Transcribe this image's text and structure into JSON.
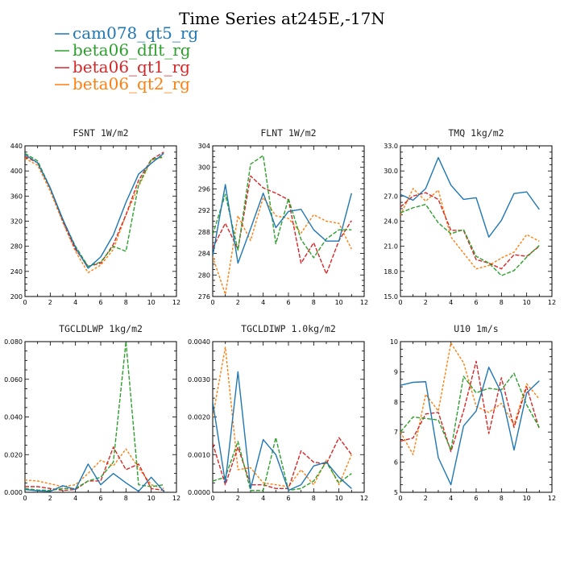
{
  "figure": {
    "title": "Time Series at245E,-17N",
    "legend": [
      {
        "name": "cam078_qt5_rg",
        "color": "#1f77b4",
        "dash": ""
      },
      {
        "name": "beta06_dflt_rg",
        "color": "#2ca02c",
        "dash": "5,2"
      },
      {
        "name": "beta06_qt1_rg",
        "color": "#d62728",
        "dash": "5,2"
      },
      {
        "name": "beta06_qt2_rg",
        "color": "#ff7f0e",
        "dash": "3,2"
      }
    ]
  },
  "chart_data": [
    {
      "type": "line",
      "title": "FSNT  1W/m2",
      "x": [
        0,
        1,
        2,
        3,
        4,
        5,
        6,
        7,
        8,
        9,
        10,
        11
      ],
      "xlim": [
        0,
        12
      ],
      "xticks": [
        "0",
        "2",
        "4",
        "6",
        "8",
        "10",
        "12"
      ],
      "ylim": [
        200,
        440
      ],
      "yticks": [
        "200",
        "240",
        "280",
        "320",
        "360",
        "400",
        "440"
      ],
      "series": [
        {
          "name": "cam078_qt5_rg",
          "values": [
            426,
            413,
            373,
            323,
            278,
            245,
            263,
            298,
            350,
            395,
            412,
            428
          ]
        },
        {
          "name": "beta06_dflt_rg",
          "values": [
            428,
            416,
            373,
            322,
            280,
            248,
            255,
            280,
            272,
            378,
            418,
            423
          ]
        },
        {
          "name": "beta06_qt1_rg",
          "values": [
            423,
            413,
            372,
            320,
            275,
            248,
            253,
            283,
            330,
            385,
            418,
            430
          ]
        },
        {
          "name": "beta06_qt2_rg",
          "values": [
            420,
            409,
            368,
            318,
            272,
            238,
            250,
            275,
            330,
            375,
            417,
            422
          ]
        }
      ]
    },
    {
      "type": "line",
      "title": "FLNT  1W/m2",
      "x": [
        0,
        1,
        2,
        3,
        4,
        5,
        6,
        7,
        8,
        9,
        10,
        11
      ],
      "xlim": [
        0,
        12
      ],
      "xticks": [
        "0",
        "2",
        "4",
        "6",
        "8",
        "10",
        "12"
      ],
      "ylim": [
        276,
        304
      ],
      "yticks": [
        "276",
        "280",
        "284",
        "288",
        "292",
        "296",
        "300",
        "304"
      ],
      "series": [
        {
          "name": "cam078_qt5_rg",
          "values": [
            283.5,
            296.8,
            282.2,
            288.6,
            295.2,
            288.8,
            291.8,
            292.2,
            288.4,
            286.3,
            286.3,
            295.2
          ]
        },
        {
          "name": "beta06_dflt_rg",
          "values": [
            287.5,
            295.0,
            284.6,
            300.6,
            302.2,
            285.8,
            294.2,
            286.6,
            283.2,
            286.7,
            288.4,
            288.4
          ]
        },
        {
          "name": "beta06_qt1_rg",
          "values": [
            285.0,
            289.6,
            284.8,
            298.4,
            296.2,
            295.2,
            294.0,
            282.2,
            286.0,
            280.2,
            286.4,
            290.1
          ]
        },
        {
          "name": "beta06_qt2_rg",
          "values": [
            283.4,
            276.4,
            291.0,
            286.4,
            294.4,
            291.0,
            290.5,
            287.8,
            291.2,
            290.0,
            289.6,
            284.8
          ]
        }
      ]
    },
    {
      "type": "line",
      "title": "TMQ  1kg/m2",
      "x": [
        0,
        1,
        2,
        3,
        4,
        5,
        6,
        7,
        8,
        9,
        10,
        11
      ],
      "xlim": [
        0,
        12
      ],
      "xticks": [
        "0",
        "2",
        "4",
        "6",
        "8",
        "10",
        "12"
      ],
      "ylim": [
        15.0,
        33.0
      ],
      "yticks": [
        "15.0",
        "18.0",
        "21.0",
        "24.0",
        "27.0",
        "30.0",
        "33.0"
      ],
      "series": [
        {
          "name": "cam078_qt5_rg",
          "values": [
            27.2,
            26.5,
            27.9,
            31.6,
            28.3,
            26.6,
            26.8,
            22.1,
            24.1,
            27.3,
            27.5,
            25.4
          ]
        },
        {
          "name": "beta06_dflt_rg",
          "values": [
            25.0,
            25.6,
            26.0,
            23.8,
            22.5,
            23.0,
            19.8,
            19.0,
            17.5,
            18.1,
            19.7,
            21.1
          ]
        },
        {
          "name": "beta06_qt1_rg",
          "values": [
            25.7,
            27.0,
            27.4,
            26.6,
            22.9,
            22.9,
            19.4,
            19.0,
            18.3,
            20.0,
            19.8,
            21.0
          ]
        },
        {
          "name": "beta06_qt2_rg",
          "values": [
            24.7,
            27.9,
            26.4,
            27.7,
            22.1,
            20.2,
            18.3,
            18.7,
            19.6,
            20.3,
            22.4,
            21.6
          ]
        }
      ]
    },
    {
      "type": "line",
      "title": "TGCLDLWP  1kg/m2",
      "x": [
        0,
        1,
        2,
        3,
        4,
        5,
        6,
        7,
        8,
        9,
        10,
        11
      ],
      "xlim": [
        0,
        12
      ],
      "xticks": [
        "0",
        "2",
        "4",
        "6",
        "8",
        "10",
        "12"
      ],
      "ylim": [
        0.0,
        0.08
      ],
      "yticks": [
        "0.000",
        "0.020",
        "0.040",
        "0.060",
        "0.080"
      ],
      "series": [
        {
          "name": "cam078_qt5_rg",
          "values": [
            0.0015,
            0.0008,
            0.0005,
            0.0035,
            0.0015,
            0.015,
            0.004,
            0.01,
            0.005,
            0.0005,
            0.008,
            0.0005
          ]
        },
        {
          "name": "beta06_dflt_rg",
          "values": [
            0.002,
            0.0012,
            0.001,
            0.002,
            0.002,
            0.006,
            0.008,
            0.016,
            0.08,
            0.004,
            0.003,
            0.004
          ]
        },
        {
          "name": "beta06_qt1_rg",
          "values": [
            0.003,
            0.003,
            0.002,
            0.001,
            0.0015,
            0.006,
            0.006,
            0.024,
            0.012,
            0.015,
            0.002,
            0.001
          ]
        },
        {
          "name": "beta06_qt2_rg",
          "values": [
            0.0065,
            0.006,
            0.0045,
            0.003,
            0.004,
            0.01,
            0.017,
            0.014,
            0.023,
            0.013,
            0.004,
            0.002
          ]
        }
      ]
    },
    {
      "type": "line",
      "title": "TGCLDIWP  1.0kg/m2",
      "x": [
        0,
        1,
        2,
        3,
        4,
        5,
        6,
        7,
        8,
        9,
        10,
        11
      ],
      "xlim": [
        0,
        12
      ],
      "xticks": [
        "0",
        "2",
        "4",
        "6",
        "8",
        "10",
        "12"
      ],
      "ylim": [
        0.0,
        0.004
      ],
      "yticks": [
        "0.0000",
        "0.0010",
        "0.0020",
        "0.0030",
        "0.0040"
      ],
      "series": [
        {
          "name": "cam078_qt5_rg",
          "values": [
            0.0024,
            0.00025,
            0.0032,
            0.0001,
            0.0014,
            0.001,
            5e-05,
            0.0002,
            0.0007,
            0.0008,
            0.0004,
            0.0001
          ]
        },
        {
          "name": "beta06_dflt_rg",
          "values": [
            0.0003,
            0.0004,
            0.00135,
            5e-05,
            5e-05,
            0.00145,
            5e-05,
            0.0001,
            0.0003,
            0.0008,
            0.00025,
            0.0005
          ]
        },
        {
          "name": "beta06_qt1_rg",
          "values": [
            0.0013,
            0.0002,
            0.0012,
            0.0002,
            0.0002,
            0.0001,
            0.0001,
            0.0011,
            0.0008,
            0.00075,
            0.00145,
            0.001
          ]
        },
        {
          "name": "beta06_qt2_rg",
          "values": [
            0.002,
            0.00385,
            0.0006,
            0.00065,
            0.00025,
            0.0002,
            0.00015,
            0.0006,
            0.0002,
            0.00085,
            0.0002,
            0.001
          ]
        }
      ]
    },
    {
      "type": "line",
      "title": "U10  1m/s",
      "x": [
        0,
        1,
        2,
        3,
        4,
        5,
        6,
        7,
        8,
        9,
        10,
        11
      ],
      "xlim": [
        0,
        12
      ],
      "xticks": [
        "0",
        "2",
        "4",
        "6",
        "8",
        "10",
        "12"
      ],
      "ylim": [
        5,
        10
      ],
      "yticks": [
        "5",
        "6",
        "7",
        "8",
        "9",
        "10"
      ],
      "series": [
        {
          "name": "cam078_qt5_rg",
          "values": [
            8.55,
            8.65,
            8.67,
            6.15,
            5.25,
            7.2,
            7.7,
            9.15,
            8.3,
            6.4,
            8.3,
            8.7
          ]
        },
        {
          "name": "beta06_dflt_rg",
          "values": [
            7.0,
            7.5,
            7.45,
            7.4,
            6.4,
            8.85,
            8.3,
            8.45,
            8.4,
            8.95,
            7.9,
            7.15
          ]
        },
        {
          "name": "beta06_qt1_rg",
          "values": [
            6.7,
            6.8,
            7.6,
            7.65,
            6.35,
            7.7,
            9.35,
            6.95,
            8.8,
            7.15,
            8.5,
            7.1
          ]
        },
        {
          "name": "beta06_qt2_rg",
          "values": [
            7.0,
            6.25,
            8.25,
            7.7,
            9.95,
            9.3,
            7.85,
            7.65,
            7.95,
            7.25,
            8.6,
            8.1
          ]
        }
      ]
    }
  ]
}
